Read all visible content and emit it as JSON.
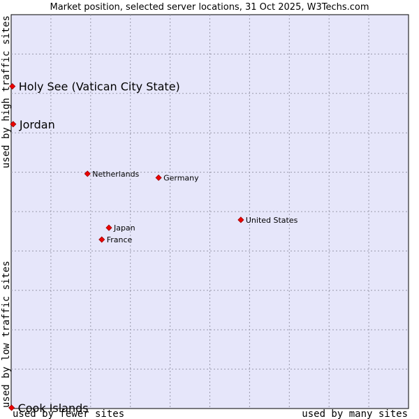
{
  "chart_data": {
    "type": "scatter",
    "title": "Market position, selected server locations, 31 Oct 2025, W3Techs.com",
    "xlabel_left": "used by fewer sites",
    "xlabel_right": "used by many sites",
    "ylabel_bottom": "used by low traffic sites",
    "ylabel_top": "used by high traffic sites",
    "xlim": [
      0,
      100
    ],
    "ylim": [
      0,
      100
    ],
    "grid": true,
    "points": [
      {
        "name": "Holy See (Vatican City State)",
        "x": 0.3,
        "y": 81.8,
        "size": "large"
      },
      {
        "name": "Jordan",
        "x": 0.5,
        "y": 72.2,
        "size": "large"
      },
      {
        "name": "Netherlands",
        "x": 19.2,
        "y": 59.6,
        "size": "small"
      },
      {
        "name": "Germany",
        "x": 37.1,
        "y": 58.6,
        "size": "small"
      },
      {
        "name": "United States",
        "x": 57.8,
        "y": 47.9,
        "size": "small"
      },
      {
        "name": "Japan",
        "x": 24.6,
        "y": 45.9,
        "size": "small"
      },
      {
        "name": "France",
        "x": 22.8,
        "y": 42.9,
        "size": "small"
      },
      {
        "name": "Cook Islands",
        "x": 0.1,
        "y": 0.2,
        "size": "large"
      }
    ]
  }
}
